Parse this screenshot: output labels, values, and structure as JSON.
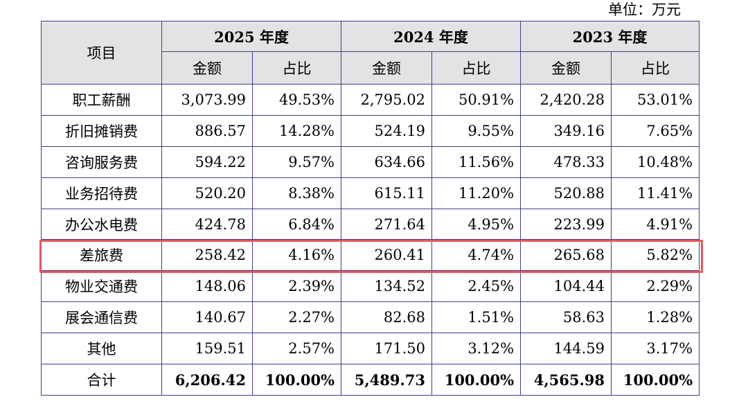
{
  "unit_label": "单位：万元",
  "header": {
    "item_label": "项目",
    "years": [
      "2025 年度",
      "2024 年度",
      "2023 年度"
    ],
    "amount_label": "金额",
    "ratio_label": "占比"
  },
  "rows": [
    {
      "item": "职工薪酬",
      "cells": [
        "3,073.99",
        "49.53%",
        "2,795.02",
        "50.91%",
        "2,420.28",
        "53.01%"
      ]
    },
    {
      "item": "折旧摊销费",
      "cells": [
        "886.57",
        "14.28%",
        "524.19",
        "9.55%",
        "349.16",
        "7.65%"
      ]
    },
    {
      "item": "咨询服务费",
      "cells": [
        "594.22",
        "9.57%",
        "634.66",
        "11.56%",
        "478.33",
        "10.48%"
      ]
    },
    {
      "item": "业务招待费",
      "cells": [
        "520.20",
        "8.38%",
        "615.11",
        "11.20%",
        "520.88",
        "11.41%"
      ]
    },
    {
      "item": "办公水电费",
      "cells": [
        "424.78",
        "6.84%",
        "271.64",
        "4.95%",
        "223.99",
        "4.91%"
      ]
    },
    {
      "item": "差旅费",
      "cells": [
        "258.42",
        "4.16%",
        "260.41",
        "4.74%",
        "265.68",
        "5.82%"
      ]
    },
    {
      "item": "物业交通费",
      "cells": [
        "148.06",
        "2.39%",
        "134.52",
        "2.45%",
        "104.44",
        "2.29%"
      ]
    },
    {
      "item": "展会通信费",
      "cells": [
        "140.67",
        "2.27%",
        "82.68",
        "1.51%",
        "58.63",
        "1.28%"
      ]
    },
    {
      "item": "其他",
      "cells": [
        "159.51",
        "2.57%",
        "171.50",
        "3.12%",
        "144.59",
        "3.17%"
      ]
    }
  ],
  "total": {
    "item": "合计",
    "cells": [
      "6,206.42",
      "100.00%",
      "5,489.73",
      "100.00%",
      "4,565.98",
      "100.00%"
    ]
  },
  "colors": {
    "border": "#3b3f8c",
    "header_bg": "#e3e3e3",
    "highlight": "#e8555d"
  }
}
